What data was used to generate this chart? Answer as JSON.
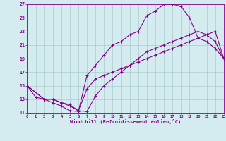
{
  "xlabel": "Windchill (Refroidissement éolien,°C)",
  "bg_color": "#d4ecf0",
  "grid_color": "#aacccc",
  "line_color": "#880088",
  "xlim": [
    0,
    23
  ],
  "ylim": [
    11,
    27
  ],
  "xticks": [
    0,
    1,
    2,
    3,
    4,
    5,
    6,
    7,
    8,
    9,
    10,
    11,
    12,
    13,
    14,
    15,
    16,
    17,
    18,
    19,
    20,
    21,
    22,
    23
  ],
  "yticks": [
    11,
    13,
    15,
    17,
    19,
    21,
    23,
    25,
    27
  ],
  "series1_x": [
    0,
    1,
    2,
    3,
    4,
    5,
    6,
    7,
    8,
    9,
    10,
    11,
    12,
    13,
    14,
    15,
    16,
    17,
    18,
    19,
    20,
    21,
    22,
    23
  ],
  "series1_y": [
    15,
    13.3,
    13,
    12.5,
    12,
    11.3,
    11.2,
    16.5,
    18,
    19.5,
    21,
    21.5,
    22.5,
    23,
    25.3,
    26.0,
    27.0,
    27.0,
    26.7,
    25.0,
    22.0,
    21.5,
    20.5,
    19.0
  ],
  "series2_x": [
    0,
    2,
    3,
    4,
    5,
    6,
    7,
    8,
    9,
    10,
    11,
    12,
    13,
    14,
    15,
    16,
    17,
    18,
    19,
    20,
    21,
    22,
    23
  ],
  "series2_y": [
    15,
    13,
    13,
    12.5,
    12,
    11.3,
    11.2,
    13.5,
    15,
    16,
    17,
    18,
    19,
    20,
    20.5,
    21,
    21.5,
    22,
    22.5,
    23,
    22.5,
    21.5,
    19.0
  ],
  "series3_x": [
    0,
    2,
    3,
    4,
    5,
    6,
    7,
    8,
    9,
    10,
    11,
    12,
    13,
    14,
    15,
    16,
    17,
    18,
    19,
    20,
    21,
    22,
    23
  ],
  "series3_y": [
    15,
    13,
    13,
    12.5,
    12.2,
    11.3,
    14.5,
    16,
    16.5,
    17,
    17.5,
    18,
    18.5,
    19,
    19.5,
    20.0,
    20.5,
    21.0,
    21.5,
    22.0,
    22.5,
    23.0,
    19.0
  ]
}
